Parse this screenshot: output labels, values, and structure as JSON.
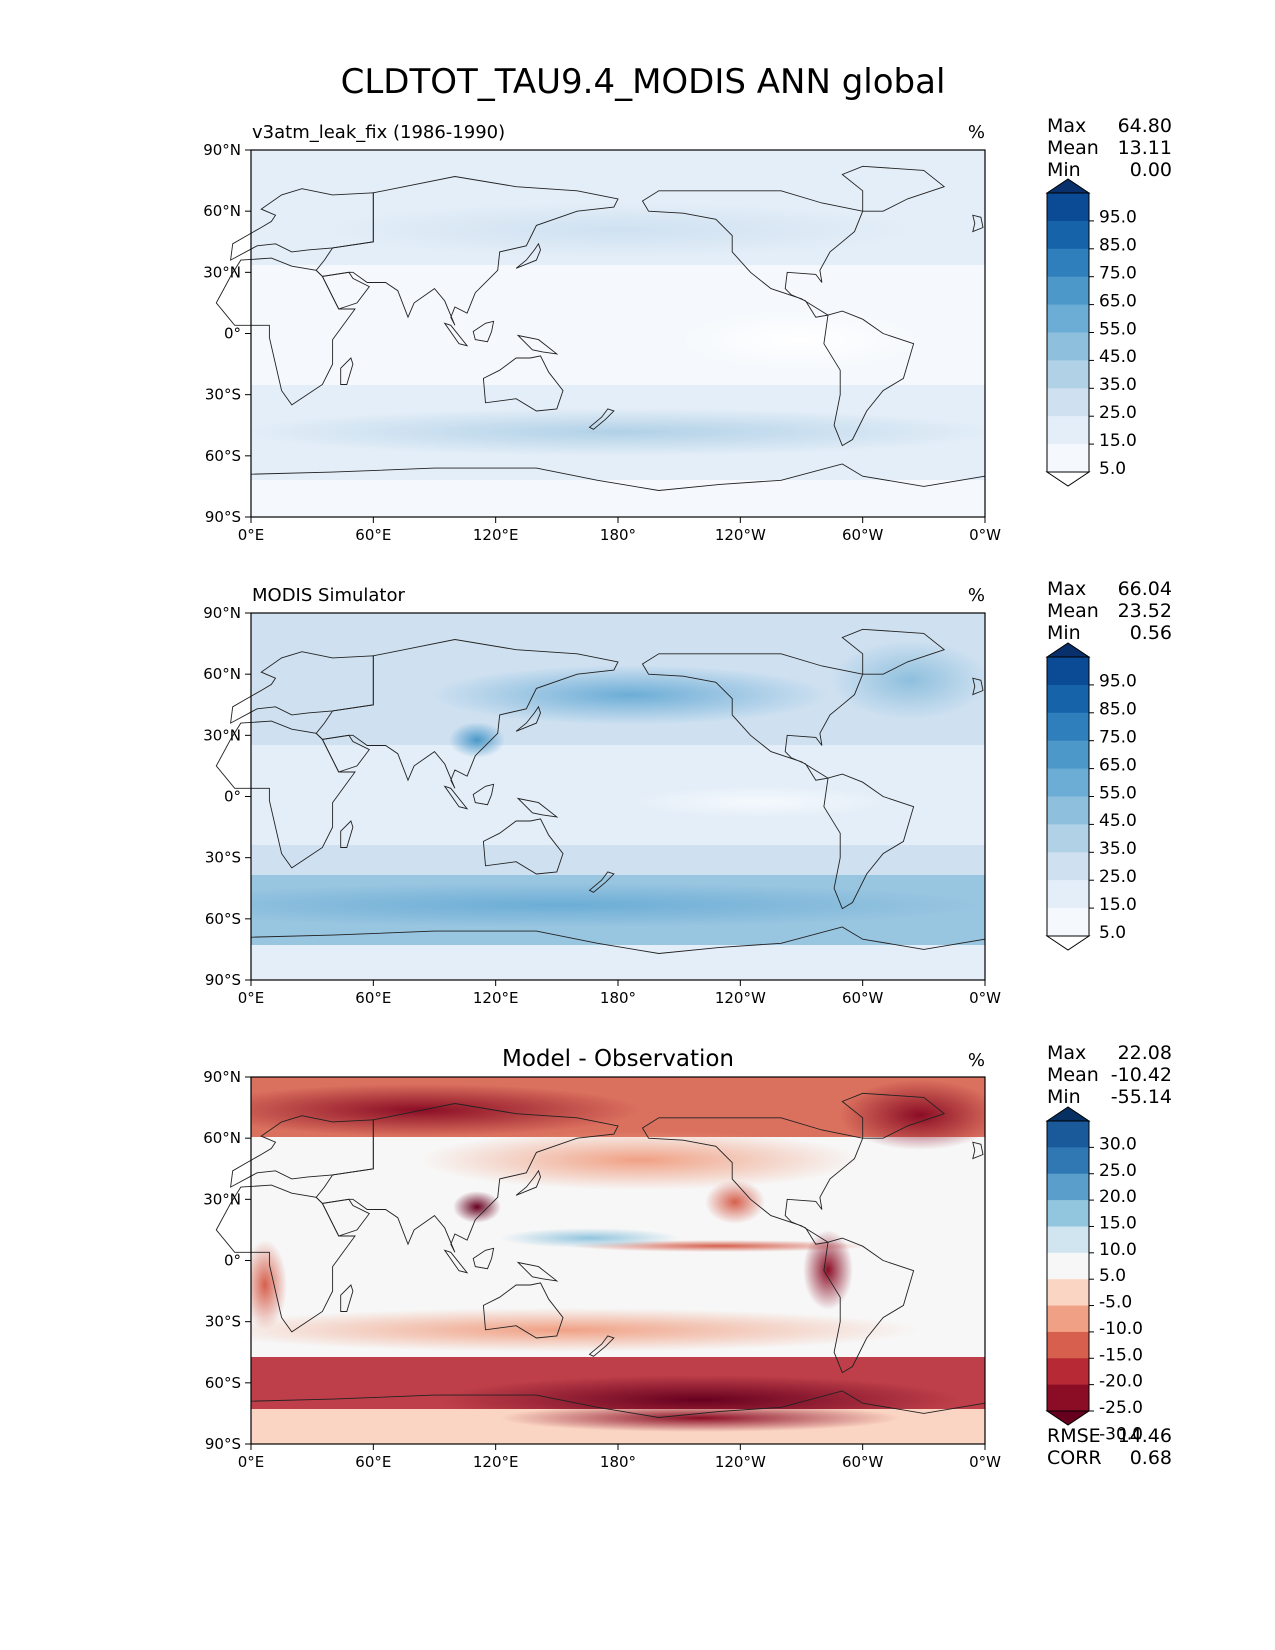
{
  "figure": {
    "title": "CLDTOT_TAU9.4_MODIS ANN global"
  },
  "chart_data": [
    {
      "type": "heatmap",
      "title": "v3atm_leak_fix (1986-1990)",
      "units": "%",
      "projection": "plate-carree",
      "x_ticks": [
        "0°E",
        "60°E",
        "120°E",
        "180°",
        "120°W",
        "60°W",
        "0°W"
      ],
      "y_ticks": [
        "90°N",
        "60°N",
        "30°N",
        "0°",
        "30°S",
        "60°S",
        "90°S"
      ],
      "stats": [
        {
          "label": "Max",
          "value": "64.80"
        },
        {
          "label": "Mean",
          "value": "13.11"
        },
        {
          "label": "Min",
          "value": "0.00"
        }
      ],
      "colorbar": {
        "levels": [
          "95.0",
          "85.0",
          "75.0",
          "65.0",
          "55.0",
          "45.0",
          "35.0",
          "25.0",
          "15.0",
          "5.0"
        ],
        "colors": [
          "#08306b",
          "#0b4a94",
          "#1763aa",
          "#2f7fbd",
          "#4b98c9",
          "#6cadd6",
          "#8ebfdd",
          "#b1d1e7",
          "#cfe1f1",
          "#e4eef8",
          "#f5f9fd",
          "#ffffff"
        ],
        "extend": "both"
      }
    },
    {
      "type": "heatmap",
      "title": "MODIS Simulator",
      "units": "%",
      "projection": "plate-carree",
      "x_ticks": [
        "0°E",
        "60°E",
        "120°E",
        "180°",
        "120°W",
        "60°W",
        "0°W"
      ],
      "y_ticks": [
        "90°N",
        "60°N",
        "30°N",
        "0°",
        "30°S",
        "60°S",
        "90°S"
      ],
      "stats": [
        {
          "label": "Max",
          "value": "66.04"
        },
        {
          "label": "Mean",
          "value": "23.52"
        },
        {
          "label": "Min",
          "value": "0.56"
        }
      ],
      "colorbar": {
        "levels": [
          "95.0",
          "85.0",
          "75.0",
          "65.0",
          "55.0",
          "45.0",
          "35.0",
          "25.0",
          "15.0",
          "5.0"
        ],
        "colors": [
          "#08306b",
          "#0b4a94",
          "#1763aa",
          "#2f7fbd",
          "#4b98c9",
          "#6cadd6",
          "#8ebfdd",
          "#b1d1e7",
          "#cfe1f1",
          "#e4eef8",
          "#f5f9fd",
          "#ffffff"
        ],
        "extend": "both"
      }
    },
    {
      "type": "heatmap",
      "title": "Model - Observation",
      "units": "%",
      "projection": "plate-carree",
      "x_ticks": [
        "0°E",
        "60°E",
        "120°E",
        "180°",
        "120°W",
        "60°W",
        "0°W"
      ],
      "y_ticks": [
        "90°N",
        "60°N",
        "30°N",
        "0°",
        "30°S",
        "60°S",
        "90°S"
      ],
      "stats": [
        {
          "label": "Max",
          "value": "22.08"
        },
        {
          "label": "Mean",
          "value": "-10.42"
        },
        {
          "label": "Min",
          "value": "-55.14"
        }
      ],
      "extra_stats": [
        {
          "label": "RMSE",
          "value": "14.46"
        },
        {
          "label": "CORR",
          "value": "0.68"
        }
      ],
      "colorbar": {
        "levels": [
          "30.0",
          "25.0",
          "20.0",
          "15.0",
          "10.0",
          "5.0",
          "-5.0",
          "-10.0",
          "-15.0",
          "-20.0",
          "-25.0",
          "-30.0"
        ],
        "colors": [
          "#053061",
          "#1a5a9b",
          "#2f78b4",
          "#5a9ecb",
          "#92c5de",
          "#d1e5f0",
          "#f7f7f7",
          "#fbd5c3",
          "#f0a185",
          "#d6604d",
          "#b72a35",
          "#8b0d25",
          "#67001f"
        ],
        "extend": "both"
      }
    }
  ]
}
